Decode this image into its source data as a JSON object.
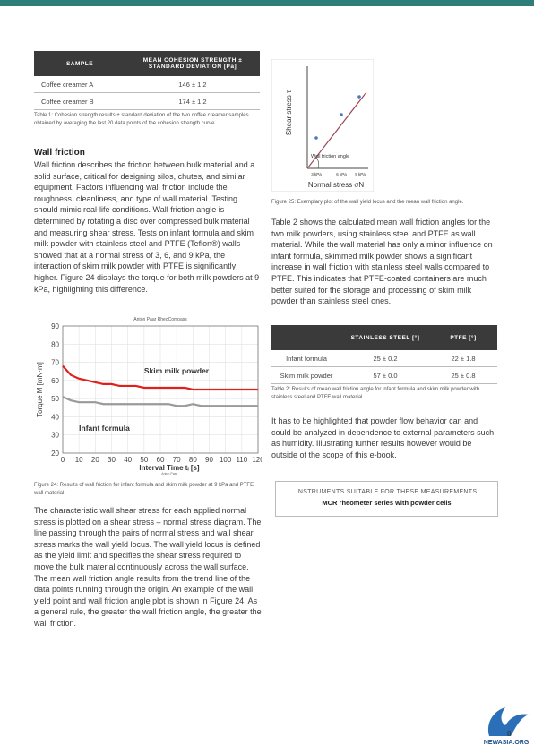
{
  "table1": {
    "headers": [
      "SAMPLE",
      "MEAN COHESION STRENGTH ± STANDARD DEVIATION [Pa]"
    ],
    "rows": [
      [
        "Coffee creamer A",
        "146 ± 1.2"
      ],
      [
        "Coffee creamer B",
        "174 ± 1.2"
      ]
    ],
    "caption": "Table 1: Cohesion strength results ± standard deviation of the two coffee creamer samples obtained by averaging the last 20 data points of the cohesion strength curve."
  },
  "section": {
    "heading": "Wall friction",
    "paragraph1": "Wall friction describes the friction between bulk material and a solid surface, critical for designing silos, chutes, and similar equipment. Factors influencing wall friction include the roughness, cleanliness, and type of wall material. Testing should mimic real-life conditions. Wall friction angle is determined by rotating a disc over compressed bulk material and measuring shear stress. Tests on infant formula and skim milk powder with stainless steel and PTFE (Teflon®) walls showed that at a normal stress of 3, 6, and 9 kPa, the interaction of skim milk powder with PTFE is significantly higher. Figure 24 displays the torque for both milk powders at 9 kPa, highlighting this difference.",
    "figure24_caption": "Figure 24: Results of wall friction for infant formula and skim milk powder at 9 kPa and PTFE wall material.",
    "paragraph2": "The characteristic wall shear stress for each applied normal stress is plotted on a shear stress – normal stress diagram. The line passing through the pairs of normal stress and wall shear stress marks the wall yield locus. The wall yield locus is defined as the yield limit and specifies the shear stress required to move the bulk material continuously across the wall surface. The mean wall friction angle results from the trend line of the data points running through the origin. An example of the wall yield point and wall friction angle plot is shown in Figure 24. As a general rule, the greater the wall friction angle, the greater the wall friction."
  },
  "chart_data": {
    "type": "line",
    "title": "Anton Paar RheoCompass",
    "footer": "Anton Paar",
    "x_label": "Interval Time tᵢ [s]",
    "y_label": "Torque M [mN·m]",
    "x": [
      0,
      5,
      10,
      15,
      20,
      25,
      30,
      35,
      40,
      45,
      50,
      55,
      60,
      65,
      70,
      75,
      80,
      85,
      90,
      95,
      100,
      105,
      110,
      115,
      120
    ],
    "series": [
      {
        "name": "Skim milk powder",
        "color": "#e0201c",
        "values": [
          68,
          63,
          61,
          60,
          59,
          58,
          58,
          57,
          57,
          57,
          56,
          56,
          56,
          56,
          56,
          56,
          55,
          55,
          55,
          55,
          55,
          55,
          55,
          55,
          55
        ]
      },
      {
        "name": "Infant formula",
        "color": "#9a9a9a",
        "values": [
          51,
          49,
          48,
          48,
          48,
          47,
          47,
          47,
          47,
          47,
          47,
          47,
          47,
          47,
          46,
          46,
          47,
          46,
          46,
          46,
          46,
          46,
          46,
          46,
          46
        ]
      }
    ],
    "xlim": [
      0,
      120
    ],
    "xticks": [
      0,
      10,
      20,
      30,
      40,
      50,
      60,
      70,
      80,
      90,
      100,
      110,
      120
    ],
    "ylim": [
      20,
      90
    ],
    "yticks": [
      20,
      30,
      40,
      50,
      60,
      70,
      80,
      90
    ],
    "grid": true
  },
  "figure25": {
    "y_label": "Shear stress τ",
    "x_label": "Normal stress σN",
    "angle_label": "Wall friction angle",
    "ticks": [
      "3 kPa",
      "6 kPa",
      "9 kPa"
    ],
    "caption": "Figure 25: Exemplary plot of the wall yield locus and the mean wall friction angle."
  },
  "right": {
    "paragraph1": "Table 2 shows the calculated mean wall friction angles for the two milk powders, using stainless steel and PTFE as wall material. While the wall material has only a minor influence on infant formula, skimmed milk powder shows a significant increase in wall friction with stainless steel walls compared to PTFE. This indicates that PTFE-coated containers are much better suited for the storage and processing of skim milk powder than stainless steel ones.",
    "paragraph2": "It has to be highlighted that powder flow behavior can and could be analyzed in dependence to external parameters such as humidity. Illustrating further results however would be outside of the scope of this e-book."
  },
  "table2": {
    "headers": [
      "STAINLESS STEEL [°]",
      "PTFE [°]"
    ],
    "rows": [
      [
        "Infant formula",
        "25 ± 0.2",
        "22 ± 1.8"
      ],
      [
        "Skim milk powder",
        "57 ± 0.0",
        "25 ± 0.8"
      ]
    ],
    "caption": "Table 2: Results of mean wall friction angle for infant formula and skim milk powder with stainless steel and PTFE wall material."
  },
  "instruments": {
    "title": "INSTRUMENTS SUITABLE FOR THESE MEASUREMENTS",
    "item": "MCR rheometer series with powder cells"
  },
  "footer": {
    "page": "8",
    "logo": "NEWASIA.ORG"
  }
}
